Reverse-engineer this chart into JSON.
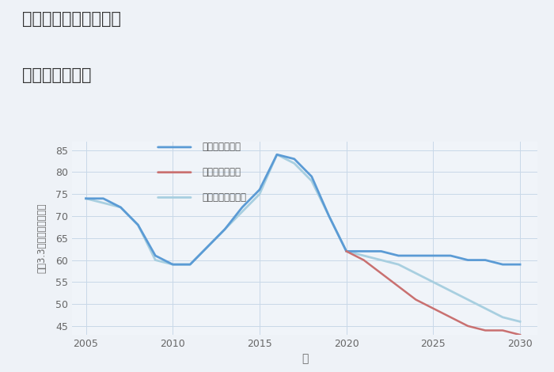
{
  "title_line1": "大阪府高槻市富田町の",
  "title_line2": "土地の価格推移",
  "xlabel": "年",
  "ylabel": "坪（3.3㎡）単価（万円）",
  "background_color": "#eef2f7",
  "plot_background": "#f0f4f9",
  "ylim": [
    43,
    87
  ],
  "yticks": [
    45,
    50,
    55,
    60,
    65,
    70,
    75,
    80,
    85
  ],
  "xticks": [
    2005,
    2010,
    2015,
    2020,
    2025,
    2030
  ],
  "good_scenario": {
    "label": "グッドシナリオ",
    "color": "#5b9bd5",
    "linewidth": 2.0,
    "x": [
      2005,
      2006,
      2007,
      2008,
      2009,
      2010,
      2011,
      2012,
      2013,
      2014,
      2015,
      2016,
      2017,
      2018,
      2019,
      2020,
      2021,
      2022,
      2023,
      2024,
      2025,
      2026,
      2027,
      2028,
      2029,
      2030
    ],
    "y": [
      74,
      74,
      72,
      68,
      61,
      59,
      59,
      63,
      67,
      72,
      76,
      84,
      83,
      79,
      70,
      62,
      62,
      62,
      61,
      61,
      61,
      61,
      60,
      60,
      59,
      59
    ]
  },
  "bad_scenario": {
    "label": "バッドシナリオ",
    "color": "#c97070",
    "linewidth": 1.8,
    "x": [
      2020,
      2021,
      2022,
      2023,
      2024,
      2025,
      2026,
      2027,
      2028,
      2029,
      2030
    ],
    "y": [
      62,
      60,
      57,
      54,
      51,
      49,
      47,
      45,
      44,
      44,
      43
    ]
  },
  "normal_scenario": {
    "label": "ノーマルシナリオ",
    "color": "#a8cfe0",
    "linewidth": 2.0,
    "x": [
      2005,
      2006,
      2007,
      2008,
      2009,
      2010,
      2011,
      2012,
      2013,
      2014,
      2015,
      2016,
      2017,
      2018,
      2019,
      2020,
      2021,
      2022,
      2023,
      2024,
      2025,
      2026,
      2027,
      2028,
      2029,
      2030
    ],
    "y": [
      74,
      73,
      72,
      68,
      60,
      59,
      59,
      63,
      67,
      71,
      75,
      84,
      82,
      78,
      70,
      62,
      61,
      60,
      59,
      57,
      55,
      53,
      51,
      49,
      47,
      46
    ]
  }
}
